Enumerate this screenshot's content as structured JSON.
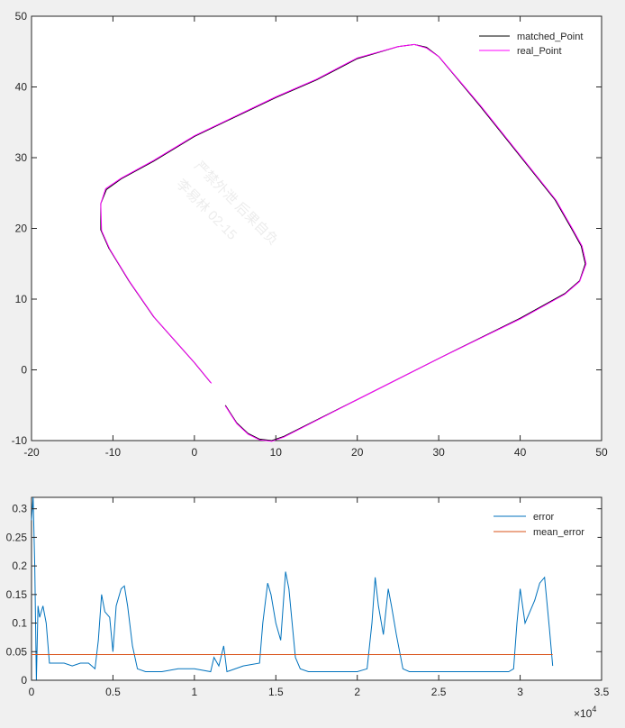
{
  "watermark": {
    "line1": "严禁外泄 后果自负",
    "line2": "李易林 02-15"
  },
  "chart_data": [
    {
      "type": "line",
      "title": "",
      "xlabel": "",
      "ylabel": "",
      "xlim": [
        -20,
        50
      ],
      "ylim": [
        -10,
        50
      ],
      "x_ticks": [
        -20,
        -10,
        0,
        10,
        20,
        30,
        40,
        50
      ],
      "y_ticks": [
        -10,
        0,
        10,
        20,
        30,
        40,
        50
      ],
      "x_tick_labels": [
        "-20",
        "-10",
        "0",
        "10",
        "20",
        "30",
        "40",
        "50"
      ],
      "y_tick_labels": [
        "-10",
        "0",
        "10",
        "20",
        "30",
        "40",
        "50"
      ],
      "grid": false,
      "legend_position": "top-right",
      "series": [
        {
          "name": "matched_Point",
          "color": "#000000",
          "x": [
            3.8,
            5.2,
            6.6,
            8.0,
            9.5,
            11.0,
            20.0,
            30.0,
            40.0,
            45.5,
            47.3,
            48.0,
            47.5,
            46.3,
            45.2,
            44.3,
            35.0,
            30.0,
            28.5,
            27.0,
            25.0,
            20.0,
            15.0,
            10.0,
            0.0,
            -5.0,
            -9.0,
            -10.8,
            -11.5,
            -11.5,
            -10.5,
            -8.0,
            -5.0,
            0.0,
            2.0
          ],
          "y": [
            -5.0,
            -7.5,
            -9.0,
            -9.8,
            -10.0,
            -9.4,
            -4.2,
            1.6,
            7.3,
            10.8,
            12.6,
            15.0,
            17.5,
            20.0,
            22.2,
            24.0,
            37.4,
            44.3,
            45.6,
            46.0,
            45.7,
            44.0,
            41.0,
            38.5,
            33.0,
            29.5,
            27.0,
            25.5,
            23.5,
            19.8,
            17.2,
            12.5,
            7.5,
            1.0,
            -1.8
          ]
        },
        {
          "name": "real_Point",
          "color": "#ff00ff",
          "x": [
            3.8,
            5.2,
            6.6,
            8.0,
            9.5,
            11.0,
            20.0,
            30.0,
            40.0,
            45.5,
            47.3,
            48.1,
            47.6,
            46.4,
            45.3,
            44.4,
            35.1,
            30.1,
            28.5,
            27.0,
            25.0,
            20.0,
            15.0,
            10.0,
            0.0,
            -5.0,
            -9.0,
            -10.9,
            -11.5,
            -11.4,
            -10.4,
            -7.9,
            -4.9,
            0.1,
            2.1
          ],
          "y": [
            -5.1,
            -7.6,
            -9.1,
            -9.9,
            -10.1,
            -9.5,
            -4.2,
            1.6,
            7.2,
            10.7,
            12.5,
            15.0,
            17.5,
            20.0,
            22.2,
            24.0,
            37.4,
            44.2,
            45.5,
            46.0,
            45.7,
            44.1,
            41.1,
            38.6,
            33.1,
            29.6,
            27.1,
            25.6,
            23.5,
            19.7,
            17.1,
            12.4,
            7.4,
            0.9,
            -1.9
          ]
        }
      ]
    },
    {
      "type": "line",
      "title": "",
      "xlabel": "",
      "ylabel": "",
      "xlim": [
        0,
        35000
      ],
      "ylim": [
        0,
        0.32
      ],
      "x_ticks": [
        0,
        5000,
        10000,
        15000,
        20000,
        25000,
        30000,
        35000
      ],
      "x_tick_labels": [
        "0",
        "0.5",
        "1",
        "1.5",
        "2",
        "2.5",
        "3",
        "3.5"
      ],
      "x_exponent_label": "×10",
      "x_exponent_power": "4",
      "y_ticks": [
        0,
        0.05,
        0.1,
        0.15,
        0.2,
        0.25,
        0.3
      ],
      "y_tick_labels": [
        "0",
        "0.05",
        "0.1",
        "0.15",
        "0.2",
        "0.25",
        "0.3"
      ],
      "grid": false,
      "legend_position": "top-right",
      "series": [
        {
          "name": "error",
          "color": "#0072bd",
          "x": [
            0,
            100,
            200,
            300,
            400,
            500,
            700,
            900,
            1100,
            1400,
            2000,
            2500,
            3000,
            3500,
            3900,
            4100,
            4300,
            4500,
            4800,
            5000,
            5200,
            5500,
            5700,
            5900,
            6200,
            6500,
            7000,
            8000,
            9000,
            10000,
            11000,
            11200,
            11500,
            11800,
            12000,
            13000,
            14000,
            14200,
            14500,
            14700,
            15000,
            15300,
            15600,
            15800,
            16000,
            16200,
            16500,
            17000,
            18000,
            19000,
            20000,
            20600,
            20900,
            21100,
            21300,
            21600,
            21900,
            22100,
            22400,
            22800,
            23200,
            24000,
            26000,
            28000,
            29300,
            29600,
            29800,
            30000,
            30300,
            30600,
            30900,
            31200,
            31500,
            31800,
            32000
          ],
          "y": [
            0.28,
            0.32,
            0.2,
            0.0,
            0.13,
            0.11,
            0.13,
            0.1,
            0.03,
            0.03,
            0.03,
            0.025,
            0.03,
            0.03,
            0.02,
            0.07,
            0.15,
            0.12,
            0.11,
            0.05,
            0.13,
            0.16,
            0.165,
            0.13,
            0.06,
            0.02,
            0.015,
            0.015,
            0.02,
            0.02,
            0.015,
            0.04,
            0.025,
            0.06,
            0.015,
            0.025,
            0.03,
            0.1,
            0.17,
            0.15,
            0.1,
            0.07,
            0.19,
            0.16,
            0.1,
            0.04,
            0.02,
            0.015,
            0.015,
            0.015,
            0.015,
            0.02,
            0.1,
            0.18,
            0.13,
            0.08,
            0.16,
            0.13,
            0.08,
            0.02,
            0.015,
            0.015,
            0.015,
            0.015,
            0.015,
            0.02,
            0.1,
            0.16,
            0.1,
            0.12,
            0.14,
            0.17,
            0.18,
            0.09,
            0.025
          ]
        },
        {
          "name": "mean_error",
          "color": "#d95319",
          "x": [
            0,
            32000
          ],
          "y": [
            0.045,
            0.045
          ]
        }
      ]
    }
  ]
}
